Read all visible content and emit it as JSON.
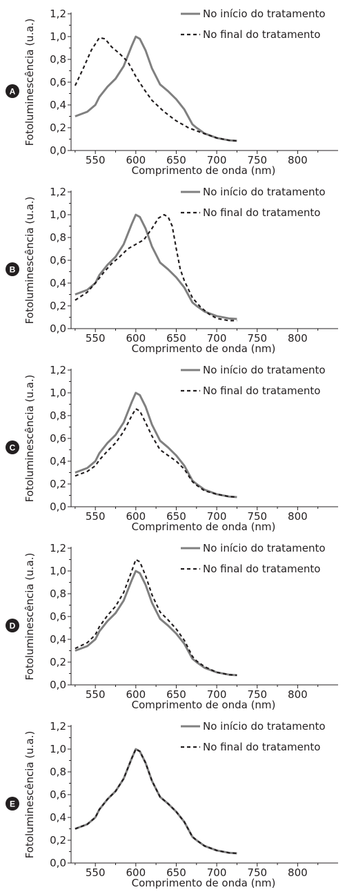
{
  "chart_data": [
    {
      "type": "line",
      "panel_label": "A",
      "xlabel": "Comprimento de onda (nm)",
      "ylabel": "Fotoluminescência (u.a.)",
      "xlim": [
        520,
        850
      ],
      "ylim": [
        0,
        1.2
      ],
      "xticks": [
        "550",
        "600",
        "650",
        "700",
        "750",
        "800"
      ],
      "yticks": [
        "0,0",
        "0,2",
        "0,4",
        "0,6",
        "0,8",
        "1,0",
        "1,2"
      ],
      "legend": "top-right",
      "series": [
        {
          "name": "No início do tratamento",
          "style": "solid",
          "color": "#808080",
          "x": [
            525,
            540,
            550,
            555,
            565,
            575,
            585,
            595,
            600,
            605,
            612,
            620,
            630,
            640,
            650,
            660,
            670,
            675,
            685,
            700,
            715,
            725
          ],
          "y": [
            0.3,
            0.34,
            0.4,
            0.47,
            0.56,
            0.63,
            0.74,
            0.92,
            1.0,
            0.98,
            0.88,
            0.72,
            0.58,
            0.52,
            0.45,
            0.36,
            0.23,
            0.2,
            0.15,
            0.11,
            0.09,
            0.085
          ]
        },
        {
          "name": "No final do tratamento",
          "style": "dashed",
          "color": "#231f20",
          "x": [
            525,
            535,
            545,
            555,
            562,
            570,
            580,
            590,
            600,
            610,
            620,
            635,
            650,
            665,
            680,
            700,
            715,
            725
          ],
          "y": [
            0.57,
            0.72,
            0.88,
            0.99,
            0.98,
            0.91,
            0.85,
            0.78,
            0.65,
            0.54,
            0.44,
            0.34,
            0.26,
            0.2,
            0.16,
            0.11,
            0.09,
            0.085
          ]
        }
      ]
    },
    {
      "type": "line",
      "panel_label": "B",
      "xlabel": "Comprimento de onda (nm)",
      "ylabel": "Fotoluminescência (u.a.)",
      "xlim": [
        520,
        850
      ],
      "ylim": [
        0,
        1.2
      ],
      "xticks": [
        "550",
        "600",
        "650",
        "700",
        "750",
        "800"
      ],
      "yticks": [
        "0,0",
        "0,2",
        "0,4",
        "0,6",
        "0,8",
        "1,0",
        "1,2"
      ],
      "legend": "top-right",
      "series": [
        {
          "name": "No início do tratamento",
          "style": "solid",
          "color": "#808080",
          "x": [
            525,
            540,
            550,
            555,
            565,
            575,
            585,
            595,
            600,
            605,
            612,
            620,
            630,
            640,
            650,
            660,
            670,
            675,
            685,
            700,
            715,
            725
          ],
          "y": [
            0.3,
            0.34,
            0.4,
            0.47,
            0.56,
            0.63,
            0.74,
            0.92,
            1.0,
            0.98,
            0.88,
            0.72,
            0.58,
            0.52,
            0.45,
            0.36,
            0.23,
            0.2,
            0.15,
            0.11,
            0.09,
            0.085
          ]
        },
        {
          "name": "No final do tratamento",
          "style": "dashed",
          "color": "#231f20",
          "x": [
            525,
            540,
            550,
            560,
            570,
            580,
            590,
            600,
            610,
            620,
            628,
            635,
            640,
            645,
            650,
            655,
            660,
            670,
            680,
            690,
            700,
            715,
            725
          ],
          "y": [
            0.25,
            0.32,
            0.4,
            0.49,
            0.57,
            0.63,
            0.7,
            0.74,
            0.78,
            0.88,
            0.97,
            1.0,
            0.98,
            0.9,
            0.7,
            0.52,
            0.42,
            0.27,
            0.19,
            0.13,
            0.09,
            0.07,
            0.07
          ]
        }
      ]
    },
    {
      "type": "line",
      "panel_label": "C",
      "xlabel": "Comprimento de onda (nm)",
      "ylabel": "Fotoluminescência (u.a.)",
      "xlim": [
        520,
        850
      ],
      "ylim": [
        0,
        1.2
      ],
      "xticks": [
        "550",
        "600",
        "650",
        "700",
        "750",
        "800"
      ],
      "yticks": [
        "0,0",
        "0,2",
        "0,4",
        "0,6",
        "0,8",
        "1,0",
        "1,2"
      ],
      "legend": "top-right",
      "series": [
        {
          "name": "No início do tratamento",
          "style": "solid",
          "color": "#808080",
          "x": [
            525,
            540,
            550,
            555,
            565,
            575,
            585,
            595,
            600,
            605,
            612,
            620,
            630,
            640,
            650,
            660,
            670,
            675,
            685,
            700,
            715,
            725
          ],
          "y": [
            0.3,
            0.34,
            0.4,
            0.47,
            0.56,
            0.63,
            0.74,
            0.92,
            1.0,
            0.98,
            0.88,
            0.72,
            0.58,
            0.52,
            0.45,
            0.36,
            0.23,
            0.2,
            0.15,
            0.11,
            0.09,
            0.085
          ]
        },
        {
          "name": "No final do tratamento",
          "style": "dashed",
          "color": "#231f20",
          "x": [
            525,
            540,
            550,
            555,
            565,
            575,
            585,
            595,
            600,
            605,
            612,
            620,
            630,
            640,
            650,
            660,
            670,
            675,
            685,
            700,
            715,
            725
          ],
          "y": [
            0.27,
            0.31,
            0.36,
            0.41,
            0.49,
            0.56,
            0.66,
            0.8,
            0.86,
            0.84,
            0.74,
            0.62,
            0.5,
            0.45,
            0.4,
            0.33,
            0.22,
            0.19,
            0.14,
            0.11,
            0.09,
            0.085
          ]
        }
      ]
    },
    {
      "type": "line",
      "panel_label": "D",
      "xlabel": "Comprimento de onda (nm)",
      "ylabel": "Fotoluminescência (u.a.)",
      "xlim": [
        520,
        850
      ],
      "ylim": [
        0,
        1.2
      ],
      "xticks": [
        "550",
        "600",
        "650",
        "700",
        "750",
        "800"
      ],
      "yticks": [
        "0,0",
        "0,2",
        "0,4",
        "0,6",
        "0,8",
        "1,0",
        "1,2"
      ],
      "legend": "top-right",
      "series": [
        {
          "name": "No início do tratamento",
          "style": "solid",
          "color": "#808080",
          "x": [
            525,
            540,
            550,
            555,
            565,
            575,
            585,
            595,
            600,
            605,
            612,
            620,
            630,
            640,
            650,
            660,
            670,
            675,
            685,
            700,
            715,
            725
          ],
          "y": [
            0.3,
            0.34,
            0.4,
            0.47,
            0.56,
            0.63,
            0.74,
            0.92,
            1.0,
            0.98,
            0.88,
            0.72,
            0.58,
            0.52,
            0.45,
            0.36,
            0.23,
            0.2,
            0.15,
            0.11,
            0.09,
            0.085
          ]
        },
        {
          "name": "No final do tratamento",
          "style": "dashed",
          "color": "#231f20",
          "x": [
            525,
            540,
            550,
            555,
            565,
            575,
            585,
            595,
            600,
            605,
            612,
            620,
            630,
            640,
            650,
            660,
            670,
            675,
            685,
            700,
            715,
            725
          ],
          "y": [
            0.32,
            0.37,
            0.44,
            0.51,
            0.61,
            0.69,
            0.81,
            1.0,
            1.1,
            1.08,
            0.96,
            0.79,
            0.64,
            0.57,
            0.49,
            0.39,
            0.25,
            0.21,
            0.16,
            0.11,
            0.09,
            0.085
          ]
        }
      ]
    },
    {
      "type": "line",
      "panel_label": "E",
      "xlabel": "Comprimento de onda (nm)",
      "ylabel": "Fotoluminescência (u.a.)",
      "xlim": [
        520,
        850
      ],
      "ylim": [
        0,
        1.2
      ],
      "xticks": [
        "550",
        "600",
        "650",
        "700",
        "750",
        "800"
      ],
      "yticks": [
        "0,0",
        "0,2",
        "0,4",
        "0,6",
        "0,8",
        "1,0",
        "1,2"
      ],
      "legend": "top-right",
      "series": [
        {
          "name": "No início do tratamento",
          "style": "solid",
          "color": "#808080",
          "x": [
            525,
            540,
            550,
            555,
            565,
            575,
            585,
            595,
            600,
            605,
            612,
            620,
            630,
            640,
            650,
            660,
            670,
            675,
            685,
            700,
            715,
            725
          ],
          "y": [
            0.3,
            0.34,
            0.4,
            0.47,
            0.56,
            0.63,
            0.74,
            0.92,
            1.0,
            0.98,
            0.88,
            0.72,
            0.58,
            0.52,
            0.45,
            0.36,
            0.23,
            0.2,
            0.15,
            0.11,
            0.09,
            0.085
          ]
        },
        {
          "name": "No final do tratamento",
          "style": "dashed",
          "color": "#231f20",
          "x": [
            525,
            540,
            550,
            555,
            565,
            575,
            585,
            595,
            600,
            605,
            612,
            620,
            630,
            640,
            650,
            660,
            670,
            675,
            685,
            700,
            715,
            725
          ],
          "y": [
            0.3,
            0.34,
            0.4,
            0.47,
            0.56,
            0.63,
            0.74,
            0.92,
            1.0,
            0.98,
            0.88,
            0.72,
            0.58,
            0.52,
            0.45,
            0.36,
            0.23,
            0.2,
            0.15,
            0.11,
            0.09,
            0.085
          ]
        }
      ]
    }
  ]
}
